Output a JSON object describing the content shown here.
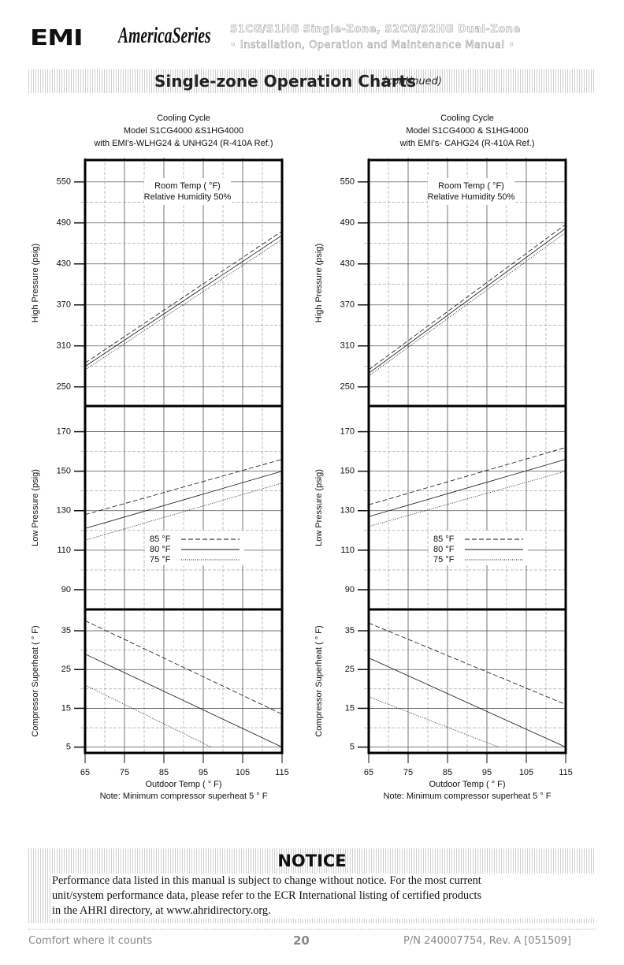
{
  "header": {
    "logo": "EMI",
    "brand": "AmericaSeries",
    "title": "S1CG/S1HG Single-Zone, S2CG/S2HG Dual-Zone",
    "subtitle": "• Installation, Operation and Maintenance Manual •"
  },
  "banner": {
    "title": "Single-zone Operation Charts",
    "note": "(continued)"
  },
  "charts": [
    {
      "type": "line",
      "title": [
        "Cooling Cycle",
        "Model S1CG4000 &S1HG4000",
        "with EMI's-WLHG24 & UNHG24 (R-410A Ref.)"
      ],
      "annotation": [
        "Room Temp ( °F)",
        "Relative Humidity 50%"
      ],
      "xlabel": "Outdoor Temp ( ° F)",
      "note": "Note: Minimum compressor superheat 5 ° F",
      "xlim": [
        65,
        115
      ],
      "xticks": [
        65,
        75,
        85,
        95,
        105,
        115
      ],
      "series": [
        {
          "name": "85 °F",
          "dash": "dashed"
        },
        {
          "name": "80 °F",
          "dash": "solid"
        },
        {
          "name": "75 °F",
          "dash": "dotted"
        }
      ],
      "panels": [
        {
          "ylabel": "High Pressure (psig)",
          "ylim": [
            222,
            582
          ],
          "yticks": [
            250,
            310,
            370,
            430,
            490,
            550
          ],
          "series": [
            {
              "x": [
                65,
                115
              ],
              "values": [
                285,
                478
              ]
            },
            {
              "x": [
                65,
                115
              ],
              "values": [
                280,
                472
              ]
            },
            {
              "x": [
                65,
                115
              ],
              "values": [
                275,
                466
              ]
            }
          ]
        },
        {
          "ylabel": "Low Pressure (psig)",
          "ylim": [
            80,
            183
          ],
          "yticks": [
            90,
            110,
            130,
            150,
            170
          ],
          "series": [
            {
              "x": [
                65,
                115
              ],
              "values": [
                128,
                156
              ]
            },
            {
              "x": [
                65,
                115
              ],
              "values": [
                121,
                150
              ]
            },
            {
              "x": [
                65,
                115
              ],
              "values": [
                115,
                144
              ]
            }
          ]
        },
        {
          "ylabel": "Compressor Superheat ( ° F)",
          "ylim": [
            3.5,
            40.5
          ],
          "yticks": [
            5,
            15,
            25,
            35
          ],
          "series": [
            {
              "x": [
                65,
                115
              ],
              "values": [
                37.6,
                13.5
              ]
            },
            {
              "x": [
                65,
                115
              ],
              "values": [
                29,
                5
              ]
            },
            {
              "x": [
                65,
                97
              ],
              "values": [
                21,
                5
              ]
            }
          ]
        }
      ]
    },
    {
      "type": "line",
      "title": [
        "Cooling Cycle",
        "Model S1CG4000 & S1HG4000",
        "with EMI's- CAHG24 (R-410A Ref.)"
      ],
      "annotation": [
        "Room Temp ( °F)",
        "Relative Humidity 50%"
      ],
      "xlabel": "Outdoor Temp ( ° F)",
      "note": "Note: Minimum compressor superheat 5 ° F",
      "xlim": [
        65,
        115
      ],
      "xticks": [
        65,
        75,
        85,
        95,
        105,
        115
      ],
      "series": [
        {
          "name": "85 °F",
          "dash": "dashed"
        },
        {
          "name": "80 °F",
          "dash": "solid"
        },
        {
          "name": "75 °F",
          "dash": "dotted"
        }
      ],
      "panels": [
        {
          "ylabel": "High Pressure (psig)",
          "ylim": [
            222,
            582
          ],
          "yticks": [
            250,
            310,
            370,
            430,
            490,
            550
          ],
          "series": [
            {
              "x": [
                65,
                115
              ],
              "values": [
                275,
                488
              ]
            },
            {
              "x": [
                65,
                115
              ],
              "values": [
                270,
                482
              ]
            },
            {
              "x": [
                65,
                115
              ],
              "values": [
                266,
                476
              ]
            }
          ]
        },
        {
          "ylabel": "Low Pressure (psig)",
          "ylim": [
            80,
            183
          ],
          "yticks": [
            90,
            110,
            130,
            150,
            170
          ],
          "series": [
            {
              "x": [
                65,
                115
              ],
              "values": [
                133,
                162
              ]
            },
            {
              "x": [
                65,
                115
              ],
              "values": [
                127,
                156
              ]
            },
            {
              "x": [
                65,
                115
              ],
              "values": [
                122,
                150
              ]
            }
          ]
        },
        {
          "ylabel": "Compressor Superheat ( ° F)",
          "ylim": [
            3.5,
            40.5
          ],
          "yticks": [
            5,
            15,
            25,
            35
          ],
          "series": [
            {
              "x": [
                65,
                115
              ],
              "values": [
                37,
                16
              ]
            },
            {
              "x": [
                65,
                115
              ],
              "values": [
                28,
                5
              ]
            },
            {
              "x": [
                65,
                98
              ],
              "values": [
                18,
                5
              ]
            }
          ]
        }
      ]
    }
  ],
  "notice": {
    "title": "NOTICE",
    "lines": [
      "Performance data listed in this manual is subject to change without notice. For the most current",
      "unit/system performance data, please refer to the ECR International listing of certified products",
      "in the AHRI directory, at www.ahridirectory.org."
    ]
  },
  "footer": {
    "left": "Comfort where it counts",
    "page": "20",
    "right": "P/N 240007754, Rev. A [051509]"
  }
}
